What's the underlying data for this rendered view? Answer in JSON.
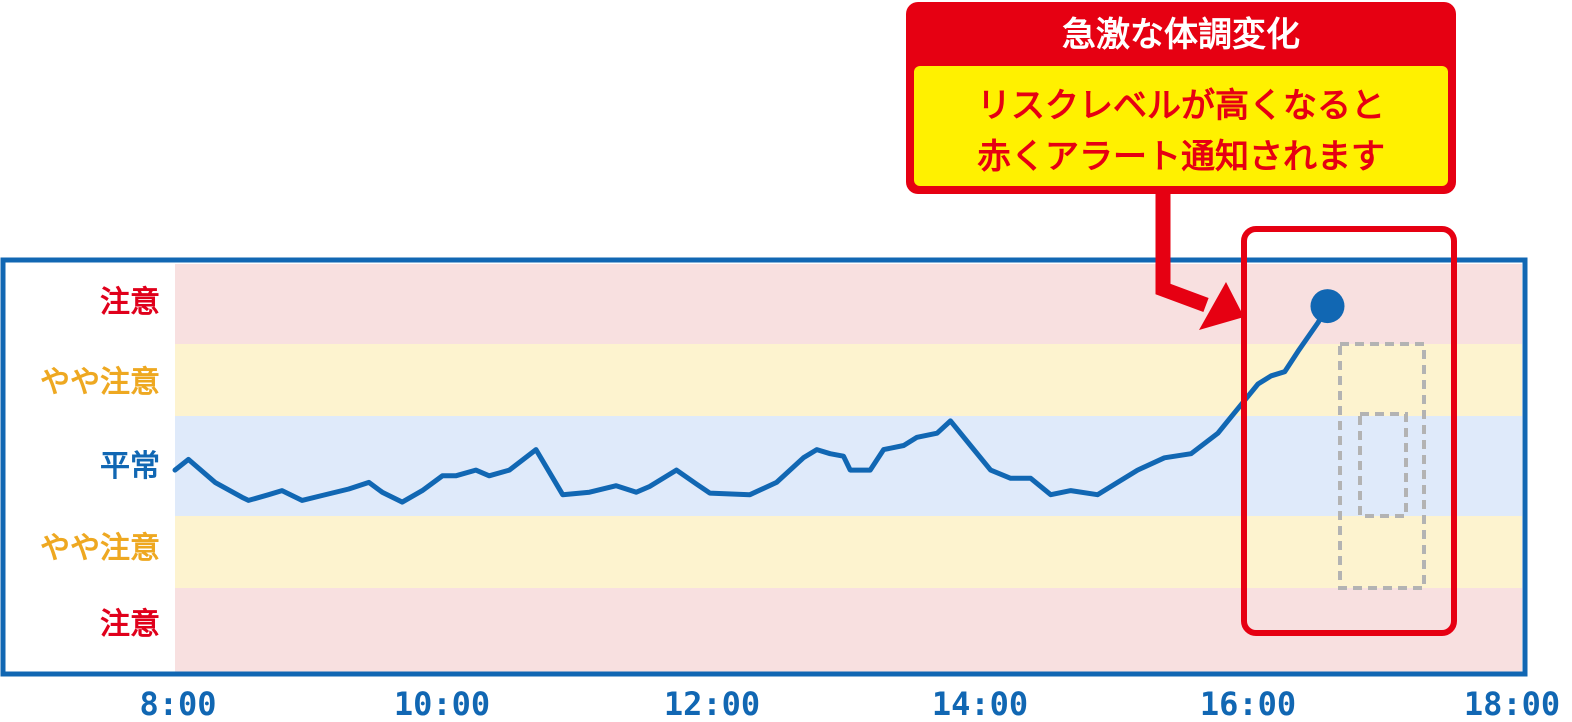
{
  "colors": {
    "frame": "#1167b3",
    "line": "#1167b3",
    "caution_band": "#f8e0e0",
    "slight_band": "#fdf3cf",
    "normal_band": "#dfeafa",
    "caution_text": "#e0001b",
    "slight_text": "#eea821",
    "normal_text": "#1167b3",
    "alert_red": "#e60012",
    "alert_yellow": "#fff100",
    "dashed_gray": "#b3b3b3"
  },
  "callout": {
    "title": "急激な体調変化",
    "message_line1": "リスクレベルが高くなると",
    "message_line2": "赤くアラート通知されます"
  },
  "chart_data": {
    "type": "line",
    "title": "",
    "xlabel": "",
    "ylabel": "",
    "x_ticks": [
      "8:00",
      "10:00",
      "12:00",
      "14:00",
      "16:00",
      "18:00"
    ],
    "x_range_hours": [
      8,
      18
    ],
    "y_bands": [
      {
        "label": "注意",
        "level": "caution"
      },
      {
        "label": "やや注意",
        "level": "slight"
      },
      {
        "label": "平常",
        "level": "normal"
      },
      {
        "label": "やや注意",
        "level": "slight"
      },
      {
        "label": "注意",
        "level": "caution"
      }
    ],
    "y_range": [
      -2.5,
      2.5
    ],
    "series": [
      {
        "points": [
          [
            8.0,
            -0.05
          ],
          [
            8.1,
            0.08
          ],
          [
            8.3,
            -0.2
          ],
          [
            8.5,
            -0.38
          ],
          [
            8.55,
            -0.42
          ],
          [
            8.7,
            -0.35
          ],
          [
            8.8,
            -0.3
          ],
          [
            8.95,
            -0.42
          ],
          [
            9.1,
            -0.36
          ],
          [
            9.3,
            -0.28
          ],
          [
            9.45,
            -0.2
          ],
          [
            9.55,
            -0.32
          ],
          [
            9.7,
            -0.44
          ],
          [
            9.85,
            -0.3
          ],
          [
            10.0,
            -0.12
          ],
          [
            10.1,
            -0.12
          ],
          [
            10.25,
            -0.05
          ],
          [
            10.35,
            -0.12
          ],
          [
            10.5,
            -0.05
          ],
          [
            10.7,
            0.2
          ],
          [
            10.9,
            -0.35
          ],
          [
            11.1,
            -0.32
          ],
          [
            11.3,
            -0.24
          ],
          [
            11.45,
            -0.32
          ],
          [
            11.55,
            -0.25
          ],
          [
            11.75,
            -0.05
          ],
          [
            11.9,
            -0.22
          ],
          [
            12.0,
            -0.33
          ],
          [
            12.3,
            -0.35
          ],
          [
            12.5,
            -0.2
          ],
          [
            12.7,
            0.1
          ],
          [
            12.8,
            0.2
          ],
          [
            12.9,
            0.15
          ],
          [
            13.0,
            0.12
          ],
          [
            13.05,
            -0.05
          ],
          [
            13.2,
            -0.05
          ],
          [
            13.3,
            0.2
          ],
          [
            13.45,
            0.25
          ],
          [
            13.55,
            0.35
          ],
          [
            13.7,
            0.4
          ],
          [
            13.8,
            0.55
          ],
          [
            13.95,
            0.25
          ],
          [
            14.1,
            -0.05
          ],
          [
            14.25,
            -0.15
          ],
          [
            14.4,
            -0.15
          ],
          [
            14.55,
            -0.35
          ],
          [
            14.7,
            -0.3
          ],
          [
            14.9,
            -0.35
          ],
          [
            15.05,
            -0.2
          ],
          [
            15.2,
            -0.05
          ],
          [
            15.4,
            0.1
          ],
          [
            15.6,
            0.15
          ],
          [
            15.8,
            0.4
          ],
          [
            15.9,
            0.6
          ],
          [
            16.0,
            0.8
          ],
          [
            16.1,
            1.0
          ],
          [
            16.2,
            1.1
          ],
          [
            16.3,
            1.15
          ],
          [
            16.4,
            1.4
          ],
          [
            16.55,
            1.75
          ],
          [
            16.62,
            1.95
          ]
        ]
      }
    ],
    "highlight_window_hours": [
      16.4,
      17.4
    ],
    "grid": false,
    "legend": "none"
  }
}
